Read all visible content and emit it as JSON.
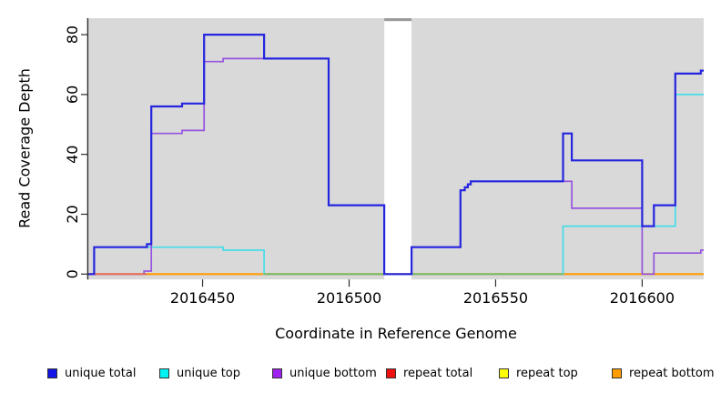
{
  "chart_data": {
    "type": "line",
    "subtype": "step-coverage",
    "title": "",
    "xlabel": "Coordinate in Reference Genome",
    "ylabel": "Read Coverage Depth",
    "x_domain": [
      2016411,
      2016621
    ],
    "y_domain": [
      -1.8,
      85.5
    ],
    "x_ticks": [
      2016450,
      2016500,
      2016550,
      2016600
    ],
    "y_ticks": [
      0,
      20,
      40,
      60,
      80
    ],
    "grid": "off",
    "colors": {
      "panel_background": "#d9d9d9",
      "axis": "#2e2e2e",
      "gap_fill": "#ffffff",
      "gap_cap": "#9b9b9b"
    },
    "gap": {
      "x1": 2016512,
      "x2": 2016521.3,
      "note": "white band with gray cap at top"
    },
    "series": {
      "unique_total": {
        "label": "unique total",
        "color": "#2525df",
        "width": 2.2,
        "points": [
          [
            2016411,
            0
          ],
          [
            2016413,
            9
          ],
          [
            2016431,
            10
          ],
          [
            2016432.5,
            56
          ],
          [
            2016443,
            57
          ],
          [
            2016450.5,
            80
          ],
          [
            2016471,
            72
          ],
          [
            2016493,
            23
          ],
          [
            2016512,
            0
          ],
          [
            2016521.3,
            9
          ],
          [
            2016538,
            28
          ],
          [
            2016539.5,
            29
          ],
          [
            2016540.5,
            30
          ],
          [
            2016541.5,
            31
          ],
          [
            2016573,
            47
          ],
          [
            2016576,
            38
          ],
          [
            2016600,
            16
          ],
          [
            2016604,
            23
          ],
          [
            2016611.3,
            67
          ],
          [
            2016620,
            68
          ]
        ]
      },
      "unique_top": {
        "label": "unique top",
        "color": "#45dde8",
        "width": 1.7,
        "points": [
          [
            2016411,
            0
          ],
          [
            2016413,
            9
          ],
          [
            2016457,
            8
          ],
          [
            2016471,
            0
          ],
          [
            2016573,
            16
          ],
          [
            2016611.3,
            60
          ]
        ]
      },
      "unique_bottom": {
        "label": "unique bottom",
        "color": "#9553e0",
        "width": 1.7,
        "points": [
          [
            2016411,
            0
          ],
          [
            2016430,
            1
          ],
          [
            2016432.5,
            47
          ],
          [
            2016443,
            48
          ],
          [
            2016450.5,
            71
          ],
          [
            2016457,
            72
          ],
          [
            2016493,
            23
          ],
          [
            2016512,
            0
          ],
          [
            2016521.3,
            9
          ],
          [
            2016538,
            28
          ],
          [
            2016539.5,
            29
          ],
          [
            2016540.5,
            30
          ],
          [
            2016541.5,
            31
          ],
          [
            2016576,
            22
          ],
          [
            2016600,
            0
          ],
          [
            2016604,
            7
          ],
          [
            2016620,
            8
          ]
        ]
      },
      "repeat_total": {
        "label": "repeat total",
        "color": "#ee1111",
        "width": 1.7,
        "points": [
          [
            2016411,
            0
          ]
        ]
      },
      "repeat_top": {
        "label": "repeat top",
        "color": "#ffff00",
        "width": 1.2,
        "points": [
          [
            2016411,
            0
          ]
        ]
      },
      "repeat_bottom": {
        "label": "repeat bottom",
        "color": "#ff9d00",
        "width": 2.0,
        "points": [
          [
            2016411,
            0
          ]
        ]
      }
    },
    "overlay_segments": {
      "repeat_total_visible": {
        "color": "#e06868",
        "width": 1.7,
        "y": 0,
        "x1": 2016413,
        "x2": 2016431
      },
      "green_overlap": {
        "color": "#69be69",
        "width": 1.7,
        "y": 0,
        "x1": 2016471,
        "x2": 2016573
      }
    },
    "draw_order": [
      "repeat_top",
      "repeat_total",
      "repeat_bottom",
      "unique_top",
      "green_overlap",
      "unique_bottom",
      "repeat_total_visible",
      "unique_total"
    ],
    "legend": {
      "position": "bottom",
      "items": [
        {
          "label": "unique total",
          "color": "#1414e6"
        },
        {
          "label": "unique top",
          "color": "#00f2f2"
        },
        {
          "label": "unique bottom",
          "color": "#a020f0"
        },
        {
          "label": "repeat total",
          "color": "#ee1111"
        },
        {
          "label": "repeat top",
          "color": "#ffff00"
        },
        {
          "label": "repeat bottom",
          "color": "#ff9d00"
        }
      ]
    }
  }
}
